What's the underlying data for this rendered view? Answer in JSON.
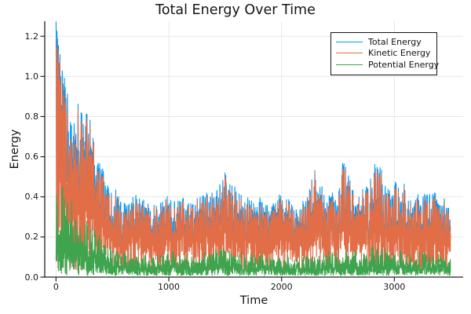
{
  "chart_data": {
    "type": "line",
    "title": "Total Energy Over Time",
    "xlabel": "Time",
    "ylabel": "Energy",
    "xlim": [
      -100,
      3610
    ],
    "ylim": [
      0,
      1.275
    ],
    "x_data_range": [
      0,
      3500
    ],
    "xticks": [
      0,
      1000,
      2000,
      3000
    ],
    "yticks": [
      0,
      0.2,
      0.4,
      0.6,
      0.8,
      1.0,
      1.2
    ],
    "ytick_labels": [
      "0.0",
      "0.2",
      "0.4",
      "0.6",
      "0.8",
      "1.0",
      "1.2"
    ],
    "grid": true,
    "grid_color": "#e7e7e7",
    "axis_color": "#222222",
    "background": "#ffffff",
    "legend": {
      "position": "top-right",
      "bordered": true
    },
    "oscillation_period": 13,
    "series": [
      {
        "name": "Total Energy",
        "color": "#009afa",
        "role": "total",
        "description": "Rapidly oscillating total energy; peaks ~1.26 at t=0, decays to a ~0.15-0.45 band with occasional spikes to ~0.5-0.63",
        "envelope_max": [
          [
            0,
            1.26
          ],
          [
            30,
            1.12
          ],
          [
            60,
            1.02
          ],
          [
            100,
            0.92
          ],
          [
            150,
            0.82
          ],
          [
            200,
            0.88
          ],
          [
            250,
            0.84
          ],
          [
            300,
            0.8
          ],
          [
            350,
            0.64
          ],
          [
            400,
            0.57
          ],
          [
            500,
            0.46
          ],
          [
            600,
            0.38
          ],
          [
            700,
            0.42
          ],
          [
            800,
            0.41
          ],
          [
            900,
            0.35
          ],
          [
            1000,
            0.42
          ],
          [
            1100,
            0.4
          ],
          [
            1200,
            0.38
          ],
          [
            1300,
            0.42
          ],
          [
            1400,
            0.44
          ],
          [
            1500,
            0.52
          ],
          [
            1600,
            0.44
          ],
          [
            1700,
            0.43
          ],
          [
            1800,
            0.41
          ],
          [
            1900,
            0.36
          ],
          [
            2000,
            0.43
          ],
          [
            2100,
            0.37
          ],
          [
            2200,
            0.38
          ],
          [
            2300,
            0.56
          ],
          [
            2400,
            0.42
          ],
          [
            2500,
            0.43
          ],
          [
            2550,
            0.62
          ],
          [
            2650,
            0.41
          ],
          [
            2750,
            0.45
          ],
          [
            2850,
            0.63
          ],
          [
            2950,
            0.43
          ],
          [
            3050,
            0.52
          ],
          [
            3150,
            0.41
          ],
          [
            3250,
            0.42
          ],
          [
            3350,
            0.46
          ],
          [
            3450,
            0.4
          ],
          [
            3500,
            0.36
          ]
        ]
      },
      {
        "name": "Kinetic Energy",
        "color": "#e26e47",
        "role": "kinetic",
        "min_value": 0.03,
        "description": "Oscillates rapidly between ~0.03 and just below the total energy envelope"
      },
      {
        "name": "Potential Energy",
        "color": "#3ea44e",
        "role": "potential",
        "min_value": 0.008,
        "description": "Oscillates between ~0.01 and its envelope; envelope decays from ~0.5 at t=0 to ~0.12",
        "envelope_max": [
          [
            0,
            0.52
          ],
          [
            50,
            0.46
          ],
          [
            100,
            0.42
          ],
          [
            200,
            0.36
          ],
          [
            300,
            0.3
          ],
          [
            400,
            0.22
          ],
          [
            500,
            0.16
          ],
          [
            600,
            0.13
          ],
          [
            800,
            0.12
          ],
          [
            1000,
            0.13
          ],
          [
            1200,
            0.12
          ],
          [
            1400,
            0.14
          ],
          [
            1500,
            0.15
          ],
          [
            1700,
            0.12
          ],
          [
            2000,
            0.12
          ],
          [
            2200,
            0.11
          ],
          [
            2400,
            0.13
          ],
          [
            2550,
            0.16
          ],
          [
            2700,
            0.13
          ],
          [
            2850,
            0.17
          ],
          [
            3000,
            0.14
          ],
          [
            3200,
            0.12
          ],
          [
            3350,
            0.13
          ],
          [
            3500,
            0.12
          ]
        ]
      }
    ]
  }
}
